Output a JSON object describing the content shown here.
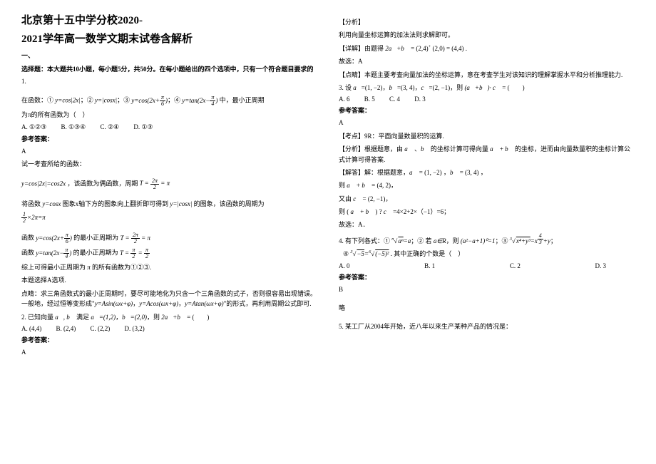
{
  "title_line1": "北京第十五中学分校2020-",
  "title_line2": "2021学年高一数学文期末试卷含解析",
  "section1_a": "一、",
  "section1_b": "选择题：本大题共10小题，每小题5分，共50分。在每小题给出的四个选项中，只有一个符合题目要求的",
  "q1_num": "1.",
  "q1_line1": "在函数：① y=cos|2x|；② y=|cosx|；③ y=cos(2x+π/6)；④ y=tan(2x−π/4) 中，最小正周期",
  "q1_line2": "为π的所有函数为（　）",
  "q1_opts": {
    "A": "A. ①②③",
    "B": "B. ①③④",
    "C": "C. ②④",
    "D": "D. ①③"
  },
  "ans_label": "参考答案：",
  "q1_ans": "A",
  "q1_exp1": "试一考查所给的函数：",
  "q1_exp2": "y=cos|2x|=cos2x ，该函数为偶函数，周期 T = 2π/2 = π",
  "q1_exp3": "将函数 y=cosx 图象x轴下方的图象向上翻折即可得到 y=|cosx| 的图象，该函数的周期为",
  "q1_exp4": "(1/2)×2π=π",
  "q1_exp5": "函数 y=cos(2x+π/6) 的最小正周期为 T = 2π/2 = π",
  "q1_exp6": "函数 y=tan(2x−π/4) 的最小正周期为 T = π/2 = π/2",
  "q1_exp7": "综上可得最小正周期为 π 的所有函数为①②③.",
  "q1_exp8": "本题选择A选项.",
  "q1_exp9": "点睛：求三角函数式的最小正周期时，要尽可能地化为只含一个三角函数的式子，否则很容易出现错误。一般地，经过恒等变形成\"y=Asin(ωx+φ)，y=Acos(ωx+φ)，y=Atan(ωx+φ)\"的形式，再利用周期公式即可.",
  "q2_stem": "2. 已知向量 a⃗ , b⃗ 满足 a⃗=(1,2)， b⃗=(2,0)，则 2a⃗+b⃗ = (　　)",
  "q2_opts": {
    "A": "A. (4,4)",
    "B": "B. (2,4)",
    "C": "C. (2,2)",
    "D": "D. (3,2)"
  },
  "q2_ans": "A",
  "q2r_a": "【分析】",
  "q2r_b": "利用向量坐标运算的加法法则求解即可。",
  "q2r_c": "【详解】由题得 2a⃗+b⃗ = (2,4) + (2,0) = (4,4) .",
  "q2r_d": "故选：A",
  "q2r_e": "【点睛】本题主要考查向量加法的坐标运算，意在考查学生对该知识的理解掌握水平和分析推理能力.",
  "q3_stem": "3. 设 a⃗=(1, −2)， b⃗=(3, 4)， c⃗=(2, −1)，则 (a⃗+b⃗)· c⃗ = (　　)",
  "q3_opts": {
    "A": "A. 6",
    "B": "B. 5",
    "C": "C. 4",
    "D": "D. 3"
  },
  "q3_ans": "A",
  "q3_exp_a": "【考点】9R：平面向量数量积的运算.",
  "q3_exp_b": "【分析】根据题意，由 a⃗ 、 b⃗ 的坐标计算可得向量 a⃗ + b⃗ 的坐标，进而由向量数量积的坐标计算公式计算可得答案.",
  "q3_exp_c": "【解答】解：根据题意， a⃗ = (1, −2) ， b⃗ = (3, 4) ，",
  "q3_exp_d": "则 a⃗ + b⃗ = (4, 2)，",
  "q3_exp_e": "又由 c⃗ = (2, −1)，",
  "q3_exp_f": "则 ( a⃗ + b⃗ ) ? c⃗ =4×2+2×（−1）=6；",
  "q3_exp_g": "故选：A．",
  "q4_stem_a": "4. 有下列各式：① ⁿ√(aⁿ) = a；② 若 a∈R，则 (a²−a+1)⁰ = 1；③ ³√(x⁴+y³) = x^(4/3)+y；",
  "q4_stem_b": "④ ³√(−5) = ⁶√((−5)²) . 其中正确的个数是（　）",
  "q4_opts": {
    "A": "A. 0",
    "B": "B. 1",
    "C": "C. 2",
    "D": "D. 3"
  },
  "q4_ans": "B",
  "q4_exp": "略",
  "q5_stem": "5. 某工厂从2004年开始，近八年以来生产某种产品的情况是："
}
